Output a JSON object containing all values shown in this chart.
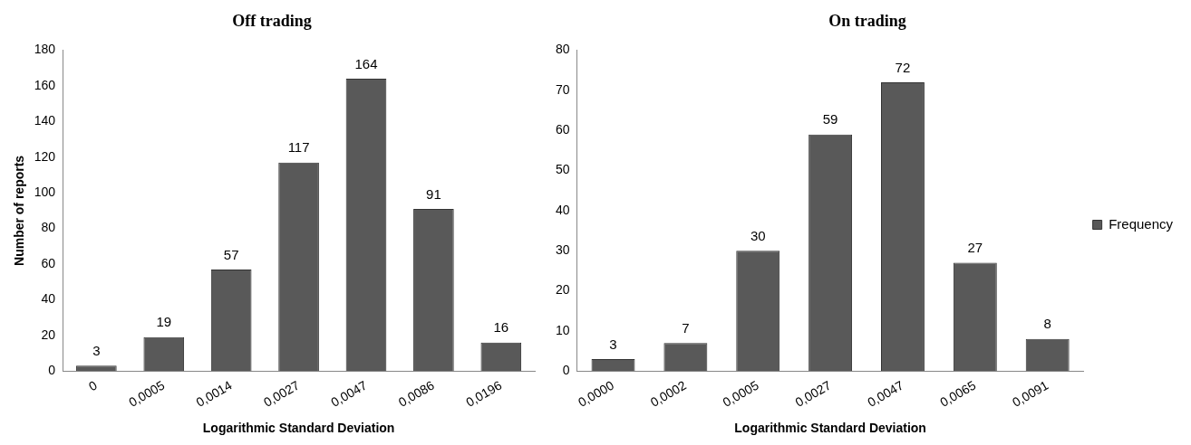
{
  "chart_data": [
    {
      "type": "bar",
      "title": "Off trading",
      "xlabel": "Logarithmic Standard Deviation",
      "ylabel": "Number of reports",
      "categories": [
        "0",
        "0,0005",
        "0,0014",
        "0,0027",
        "0,0047",
        "0,0086",
        "0,0196"
      ],
      "series": [
        {
          "color": "#595959",
          "values": [
            3,
            19,
            57,
            117,
            164,
            91,
            16
          ]
        }
      ],
      "ylim": [
        0,
        180
      ],
      "yticks": [
        0,
        20,
        40,
        60,
        80,
        100,
        120,
        140,
        160,
        180
      ],
      "grid": false,
      "data_labels": true,
      "legend": false
    },
    {
      "type": "bar",
      "title": "On trading",
      "xlabel": "Logarithmic Standard Deviation",
      "categories": [
        "0,0000",
        "0,0002",
        "0,0005",
        "0,0027",
        "0,0047",
        "0,0065",
        "0,0091"
      ],
      "series": [
        {
          "name": "Frequency",
          "color": "#595959",
          "values": [
            3,
            7,
            30,
            59,
            72,
            27,
            8
          ]
        }
      ],
      "ylim": [
        0,
        80
      ],
      "yticks": [
        0,
        10,
        20,
        30,
        40,
        50,
        60,
        70,
        80
      ],
      "grid": false,
      "data_labels": true,
      "legend": "right"
    }
  ]
}
